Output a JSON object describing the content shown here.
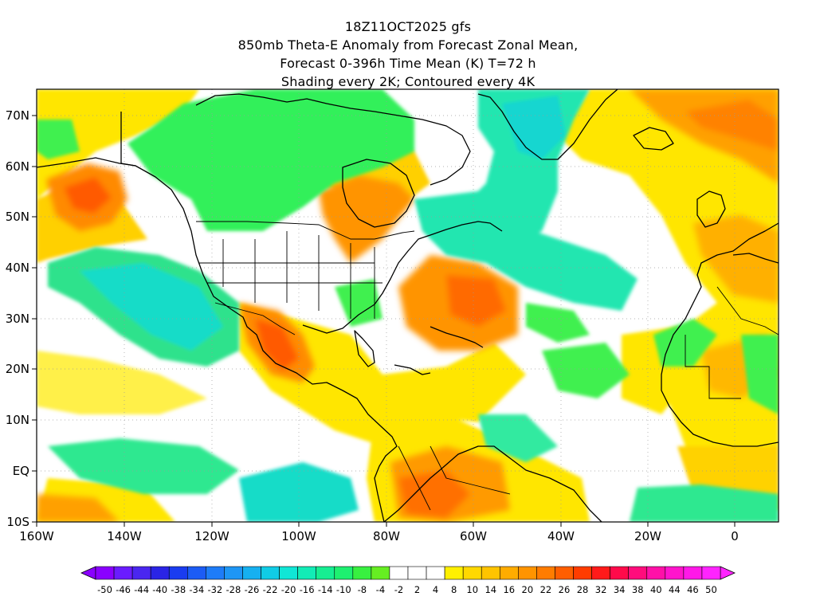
{
  "title": {
    "line1": "18Z11OCT2025 gfs",
    "line2": "850mb Theta-E Anomaly from Forecast Zonal Mean,",
    "line3": "Forecast 0-396h Time Mean (K) T=72 h",
    "line4": "Shading every 2K; Contoured every 4K"
  },
  "axes": {
    "lon_labels": [
      "160W",
      "140W",
      "120W",
      "100W",
      "80W",
      "60W",
      "40W",
      "20W",
      "0"
    ],
    "lat_labels": [
      "70N",
      "60N",
      "50N",
      "40N",
      "30N",
      "20N",
      "10N",
      "EQ",
      "10S"
    ],
    "lon_range": [
      -160,
      10
    ],
    "lat_range": [
      -10,
      75
    ]
  },
  "colorbar": {
    "labels": [
      "-50",
      "-46",
      "-44",
      "-40",
      "-38",
      "-34",
      "-32",
      "-28",
      "-26",
      "-22",
      "-20",
      "-16",
      "-14",
      "-10",
      "-8",
      "-4",
      "-2",
      "2",
      "4",
      "8",
      "10",
      "14",
      "16",
      "20",
      "22",
      "26",
      "28",
      "32",
      "34",
      "38",
      "40",
      "44",
      "46",
      "50"
    ],
    "colors": [
      "#8a00ff",
      "#6a1cff",
      "#4a26f0",
      "#2a24e6",
      "#1a3cf0",
      "#1c5cf5",
      "#1e7cf8",
      "#1e96f5",
      "#16b0f0",
      "#10cce6",
      "#10e6d6",
      "#12ecb6",
      "#16ee92",
      "#1ef070",
      "#38f040",
      "#66ee22",
      "#ffffff",
      "#ffffff",
      "#ffffff",
      "#fff000",
      "#ffd800",
      "#ffc400",
      "#ffac00",
      "#ff9400",
      "#ff7c00",
      "#ff5e00",
      "#ff3c00",
      "#ff1a1a",
      "#ff0a4a",
      "#ff0c7c",
      "#ff10a8",
      "#ff14cc",
      "#ff18e8",
      "#ff24ff"
    ]
  },
  "palette": {
    "green": "#32f05a",
    "cyan": "#18e6c8",
    "yellow": "#ffe600",
    "orange": "#ffb000",
    "red": "#ff6a00",
    "coast": "#000000",
    "grid": "#9a9a9a"
  }
}
